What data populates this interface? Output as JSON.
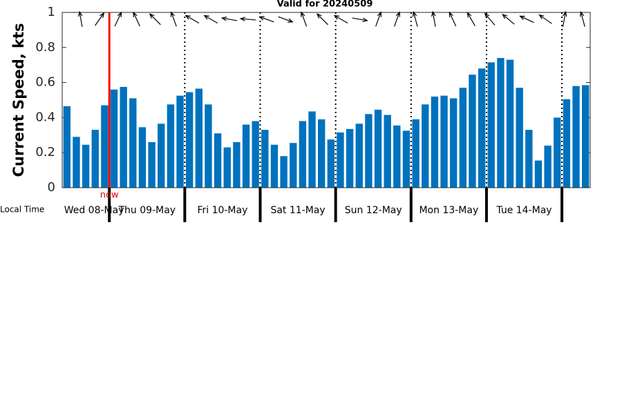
{
  "chart_data": {
    "type": "bar",
    "title": "Valid for 20240509",
    "y_label": "Current Speed, kts",
    "x_label": "Local Time",
    "now_label": "now",
    "days": [
      "Wed 08-May",
      "Thu 09-May",
      "Fri 10-May",
      "Sat 11-May",
      "Sun 12-May",
      "Mon 13-May",
      "Tue 14-May"
    ],
    "values": [
      0.465,
      0.29,
      0.245,
      0.33,
      0.47,
      0.56,
      0.575,
      0.51,
      0.345,
      0.26,
      0.365,
      0.475,
      0.525,
      0.545,
      0.565,
      0.475,
      0.31,
      0.23,
      0.26,
      0.36,
      0.38,
      0.33,
      0.245,
      0.18,
      0.255,
      0.38,
      0.435,
      0.39,
      0.275,
      0.315,
      0.335,
      0.365,
      0.42,
      0.445,
      0.415,
      0.355,
      0.325,
      0.39,
      0.475,
      0.52,
      0.525,
      0.51,
      0.57,
      0.645,
      0.68,
      0.715,
      0.74,
      0.73,
      0.57,
      0.33,
      0.155,
      0.24,
      0.4,
      0.505,
      0.58,
      0.585
    ],
    "directions": [
      350,
      35,
      25,
      335,
      315,
      340,
      300,
      300,
      280,
      275,
      290,
      110,
      340,
      315,
      300,
      100,
      20,
      20,
      345,
      350,
      335,
      330,
      320,
      310,
      295,
      305,
      10,
      345
    ],
    "color": "#0072bd",
    "ylim": [
      0,
      1
    ],
    "yticks": [
      0,
      0.2,
      0.4,
      0.6,
      0.8,
      1
    ]
  }
}
